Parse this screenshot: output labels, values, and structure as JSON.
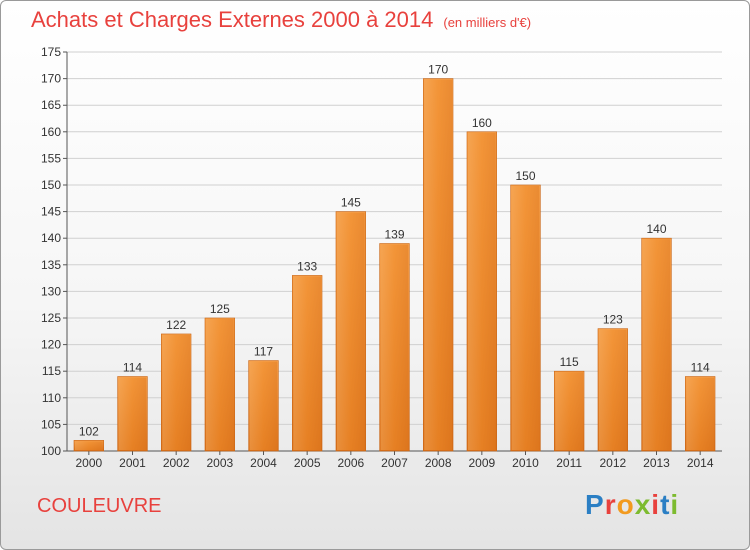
{
  "header": {
    "title": "Achats et Charges Externes 2000 à 2014",
    "unit": "(en milliers d'€)"
  },
  "footer": {
    "city": "COULEUVRE",
    "logo_letters": [
      "P",
      "r",
      "o",
      "x",
      "i",
      "t",
      "i"
    ],
    "logo_colors": [
      "#2b7fc4",
      "#e8413d",
      "#f29a1f",
      "#7dbb2f",
      "#e8413d",
      "#2b7fc4",
      "#7dbb2f"
    ]
  },
  "colors": {
    "bar": "#f08c2a",
    "bar_light": "#f6aa55",
    "title": "#e8413d"
  },
  "chart_data": {
    "type": "bar",
    "categories": [
      "2000",
      "2001",
      "2002",
      "2003",
      "2004",
      "2005",
      "2006",
      "2007",
      "2008",
      "2009",
      "2010",
      "2011",
      "2012",
      "2013",
      "2014"
    ],
    "values": [
      102,
      114,
      122,
      125,
      117,
      133,
      145,
      139,
      170,
      160,
      150,
      115,
      123,
      140,
      114
    ],
    "title": "Achats et Charges Externes 2000 à 2014",
    "ylim": [
      100,
      175
    ],
    "yticks": [
      100,
      105,
      110,
      115,
      120,
      125,
      130,
      135,
      140,
      145,
      150,
      155,
      160,
      165,
      170,
      175
    ],
    "grid": true,
    "legend": "none"
  }
}
